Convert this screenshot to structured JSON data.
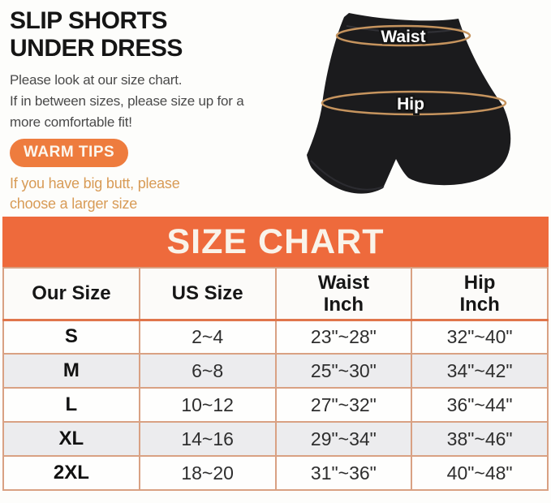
{
  "colors": {
    "banner_bg": "#EE6A3C",
    "banner_text": "#F9F3EA",
    "badge_bg": "#EE7C3E",
    "badge_text": "#FCF7EE",
    "tip_text": "#D89B56",
    "title_text": "#151515",
    "body_text": "#4A4A4A",
    "table_border": "#D9A183",
    "header_divider": "#E0764C",
    "row_alt_bg": "#ECECEE",
    "measure_line": "#C6945E",
    "page_bg": "#FDFDFB"
  },
  "intro": {
    "title_line1": "SLIP SHORTS",
    "title_line2": "UNDER DRESS",
    "description_lines": [
      "Please look at our size chart.",
      "If in between sizes, please size up for a",
      "more comfortable fit!"
    ],
    "warm_tips_label": "WARM TIPS",
    "tip_lines": [
      "If you have big butt, please",
      "choose a larger size"
    ]
  },
  "figure": {
    "waist_label": "Waist",
    "hip_label": "Hip"
  },
  "size_chart": {
    "title": "SIZE CHART",
    "columns": [
      [
        "Our Size"
      ],
      [
        "US Size"
      ],
      [
        "Waist",
        "Inch"
      ],
      [
        "Hip",
        "Inch"
      ]
    ],
    "rows": [
      {
        "our_size": "S",
        "us_size": "2~4",
        "waist_inch": "23\"~28\"",
        "hip_inch": "32\"~40\""
      },
      {
        "our_size": "M",
        "us_size": "6~8",
        "waist_inch": "25\"~30\"",
        "hip_inch": "34\"~42\""
      },
      {
        "our_size": "L",
        "us_size": "10~12",
        "waist_inch": "27\"~32\"",
        "hip_inch": "36\"~44\""
      },
      {
        "our_size": "XL",
        "us_size": "14~16",
        "waist_inch": "29\"~34\"",
        "hip_inch": "38\"~46\""
      },
      {
        "our_size": "2XL",
        "us_size": "18~20",
        "waist_inch": "31\"~36\"",
        "hip_inch": "40\"~48\""
      }
    ]
  },
  "chart_data": {
    "type": "table",
    "title": "SIZE CHART",
    "columns": [
      "Our Size",
      "US Size",
      "Waist Inch",
      "Hip Inch"
    ],
    "rows": [
      [
        "S",
        "2~4",
        "23\"~28\"",
        "32\"~40\""
      ],
      [
        "M",
        "6~8",
        "25\"~30\"",
        "34\"~42\""
      ],
      [
        "L",
        "10~12",
        "27\"~32\"",
        "36\"~44\""
      ],
      [
        "XL",
        "14~16",
        "29\"~34\"",
        "38\"~46\""
      ],
      [
        "2XL",
        "18~20",
        "31\"~36\"",
        "40\"~48\""
      ]
    ]
  }
}
